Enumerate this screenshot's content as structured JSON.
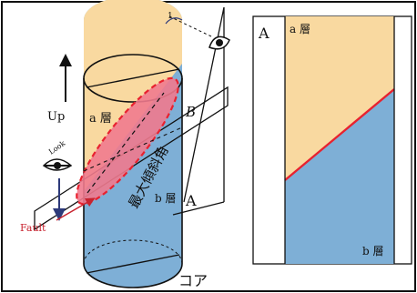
{
  "left_panel": {
    "layer_top": "a 層",
    "layer_bottom": "b 層",
    "up_label": "Up",
    "plane_a_label": "A",
    "plane_b_label": "B",
    "max_dip_label": "最大傾斜角",
    "fault_label": "Fault",
    "look_label": "Look",
    "core_label": "コア",
    "top_symbol": "1"
  },
  "right_panel": {
    "plane_label": "A",
    "layer_top": "a 層",
    "layer_bottom": "b 層"
  },
  "colors": {
    "layer_a": "#f9d9a0",
    "layer_b": "#7eafd6",
    "fault_fill": "#f07a8e",
    "fault_line": "#e8222f",
    "fault_arrow": "#c8232f",
    "look_arrow": "#2d3a7a"
  },
  "icons": [
    "eye-icon",
    "up-arrow-icon",
    "down-arrow-icon",
    "fault-arrow-icon"
  ]
}
